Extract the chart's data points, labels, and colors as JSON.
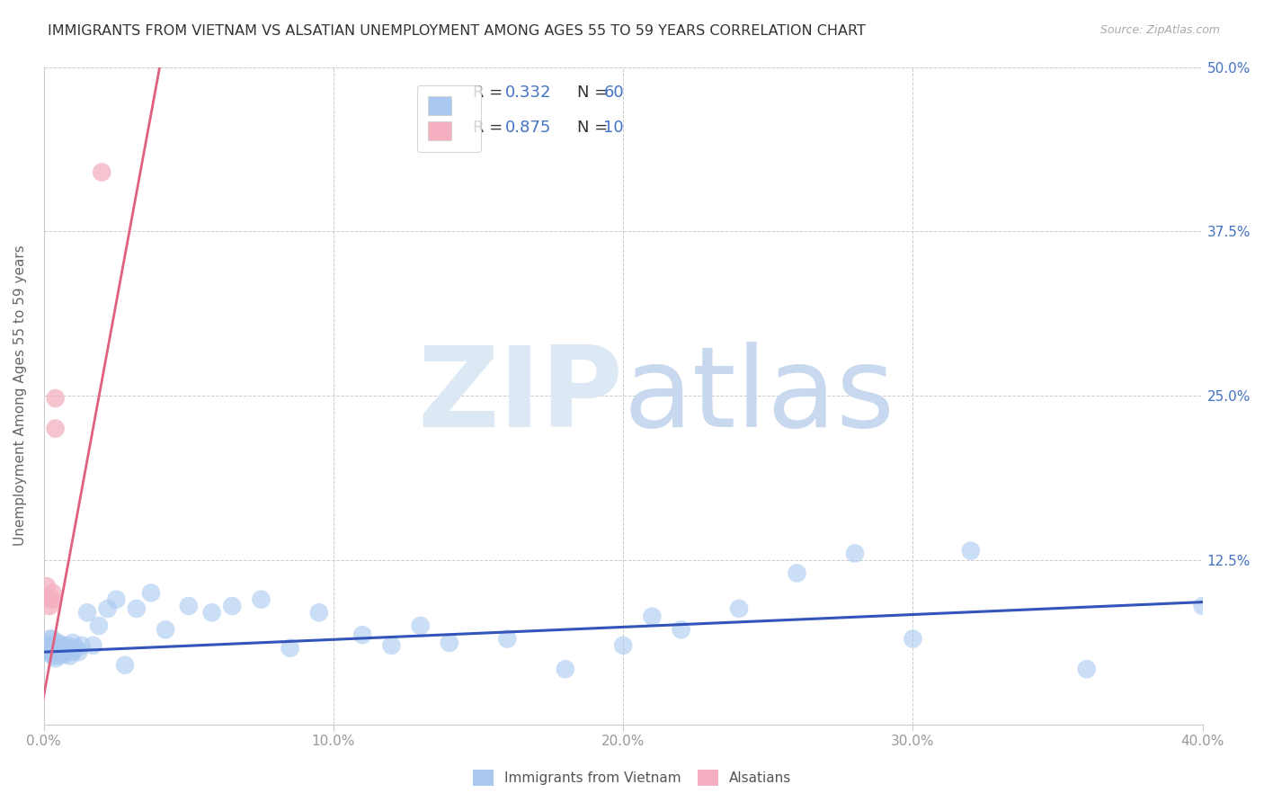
{
  "title": "IMMIGRANTS FROM VIETNAM VS ALSATIAN UNEMPLOYMENT AMONG AGES 55 TO 59 YEARS CORRELATION CHART",
  "source": "Source: ZipAtlas.com",
  "ylabel": "Unemployment Among Ages 55 to 59 years",
  "legend_label1": "Immigrants from Vietnam",
  "legend_label2": "Alsatians",
  "xlim": [
    0.0,
    0.4
  ],
  "ylim": [
    0.0,
    0.5
  ],
  "xticks": [
    0.0,
    0.1,
    0.2,
    0.3,
    0.4
  ],
  "yticks": [
    0.0,
    0.125,
    0.25,
    0.375,
    0.5
  ],
  "xticklabels": [
    "0.0%",
    "10.0%",
    "20.0%",
    "30.0%",
    "40.0%"
  ],
  "yticklabels_right": [
    "",
    "12.5%",
    "25.0%",
    "37.5%",
    "50.0%"
  ],
  "color_blue": "#a8c8f0",
  "color_pink": "#f4b0c0",
  "color_line_blue": "#3355bb",
  "color_line_pink": "#e06080",
  "watermark_zip": "ZIP",
  "watermark_atlas": "atlas",
  "watermark_color": "#dde8f5",
  "blue_scatter_x": [
    0.001,
    0.001,
    0.002,
    0.002,
    0.002,
    0.002,
    0.003,
    0.003,
    0.003,
    0.003,
    0.004,
    0.004,
    0.004,
    0.005,
    0.005,
    0.005,
    0.006,
    0.006,
    0.007,
    0.007,
    0.008,
    0.008,
    0.009,
    0.009,
    0.01,
    0.01,
    0.011,
    0.012,
    0.013,
    0.015,
    0.017,
    0.019,
    0.022,
    0.025,
    0.028,
    0.032,
    0.037,
    0.042,
    0.05,
    0.058,
    0.065,
    0.075,
    0.085,
    0.095,
    0.11,
    0.12,
    0.13,
    0.14,
    0.16,
    0.18,
    0.2,
    0.21,
    0.22,
    0.24,
    0.26,
    0.28,
    0.3,
    0.32,
    0.36,
    0.4
  ],
  "blue_scatter_y": [
    0.055,
    0.06,
    0.055,
    0.058,
    0.06,
    0.065,
    0.052,
    0.055,
    0.06,
    0.065,
    0.05,
    0.055,
    0.06,
    0.052,
    0.055,
    0.062,
    0.055,
    0.06,
    0.053,
    0.058,
    0.055,
    0.06,
    0.052,
    0.058,
    0.055,
    0.062,
    0.058,
    0.055,
    0.06,
    0.085,
    0.06,
    0.075,
    0.088,
    0.095,
    0.045,
    0.088,
    0.1,
    0.072,
    0.09,
    0.085,
    0.09,
    0.095,
    0.058,
    0.085,
    0.068,
    0.06,
    0.075,
    0.062,
    0.065,
    0.042,
    0.06,
    0.082,
    0.072,
    0.088,
    0.115,
    0.13,
    0.065,
    0.132,
    0.042,
    0.09
  ],
  "pink_scatter_x": [
    0.001,
    0.002,
    0.002,
    0.003,
    0.003,
    0.004,
    0.004,
    0.02
  ],
  "pink_scatter_y": [
    0.105,
    0.09,
    0.095,
    0.095,
    0.1,
    0.248,
    0.225,
    0.42
  ],
  "blue_trend_x": [
    0.0,
    0.4
  ],
  "blue_trend_y": [
    0.055,
    0.093
  ],
  "pink_trend_x": [
    -0.001,
    0.04
  ],
  "pink_trend_y": [
    0.01,
    0.5
  ]
}
